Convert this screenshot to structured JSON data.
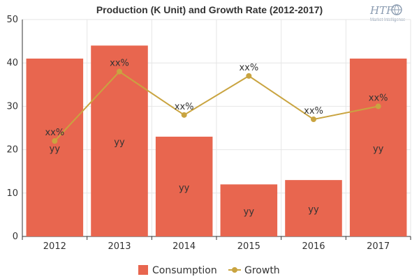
{
  "chart_data": {
    "type": "bar",
    "title": "Production (K Unit) and Growth Rate (2012-2017)",
    "categories": [
      "2012",
      "2013",
      "2014",
      "2015",
      "2016",
      "2017"
    ],
    "ylim": [
      0,
      50
    ],
    "yticks": [
      0,
      10,
      20,
      30,
      40,
      50
    ],
    "grid": true,
    "legend_position": "bottom",
    "series": [
      {
        "name": "Consumption",
        "kind": "bar",
        "color": "#e8664f",
        "values": [
          41,
          44,
          23,
          12,
          13,
          41
        ],
        "labels": [
          "yy",
          "yy",
          "yy",
          "yy",
          "yy",
          "yy"
        ]
      },
      {
        "name": "Growth",
        "kind": "line",
        "color": "#c9a440",
        "values": [
          22,
          38,
          28,
          37,
          27,
          30
        ],
        "labels": [
          "xx%",
          "xx%",
          "xx%",
          "xx%",
          "xx%",
          "xx%"
        ]
      }
    ]
  },
  "logo": {
    "main": "HTF",
    "sub": "Market Intelligence",
    "color": "#8a9bb0"
  }
}
